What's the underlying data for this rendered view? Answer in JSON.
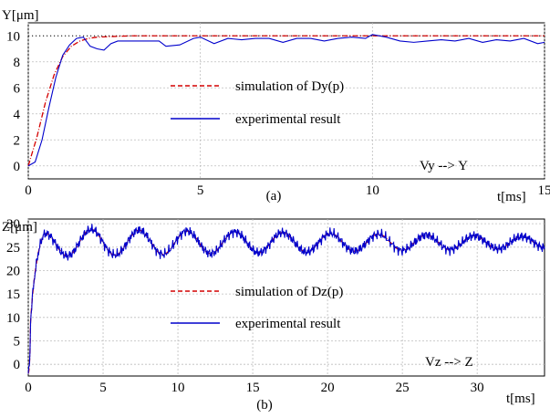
{
  "chart_data": [
    {
      "type": "line",
      "ylabel": "Y[μm]",
      "xlabel": "t[ms]",
      "caption": "(a)",
      "annotation": "Vy --> Y",
      "xlim": [
        0,
        15
      ],
      "ylim": [
        -1,
        11
      ],
      "xticks": [
        "0",
        "5",
        "10",
        "15"
      ],
      "yticks": [
        "0",
        "2",
        "4",
        "6",
        "8",
        "10"
      ],
      "reference_line": 10,
      "grid": true,
      "series": [
        {
          "name": "simulation of Dy(p)",
          "style": "dashdot",
          "color": "#d40000",
          "x": [
            0,
            0.25,
            0.5,
            0.75,
            1.0,
            1.25,
            1.5,
            1.75,
            2.0,
            2.5,
            3,
            4,
            5,
            6,
            7,
            8,
            9,
            10,
            11,
            12,
            13,
            14,
            15
          ],
          "y": [
            0,
            2.2,
            4.9,
            7.0,
            8.4,
            9.2,
            9.6,
            9.8,
            9.9,
            9.95,
            10,
            10,
            10,
            10,
            10,
            10,
            10,
            10,
            10,
            10,
            10,
            10,
            10
          ]
        },
        {
          "name": "experimental result",
          "style": "solid",
          "color": "#0000cc",
          "x": [
            0,
            0.2,
            0.4,
            0.6,
            0.8,
            1.0,
            1.2,
            1.4,
            1.6,
            1.8,
            2.0,
            2.2,
            2.4,
            2.6,
            2.8,
            3.0,
            3.4,
            3.8,
            4.0,
            4.4,
            4.8,
            5.0,
            5.4,
            5.8,
            6.2,
            6.6,
            7.0,
            7.4,
            7.8,
            8.2,
            8.6,
            9.0,
            9.4,
            9.8,
            10.0,
            10.4,
            10.8,
            11.2,
            11.6,
            12.0,
            12.4,
            12.8,
            13.2,
            13.6,
            14.0,
            14.4,
            14.8,
            15.0
          ],
          "y": [
            0,
            0.3,
            2.0,
            4.5,
            6.8,
            8.5,
            9.3,
            9.8,
            9.9,
            9.2,
            9.0,
            8.9,
            9.4,
            9.6,
            9.6,
            9.6,
            9.6,
            9.6,
            9.2,
            9.3,
            9.8,
            9.9,
            9.4,
            9.8,
            9.7,
            9.8,
            9.8,
            9.5,
            9.8,
            9.8,
            9.6,
            9.8,
            9.9,
            9.8,
            10.1,
            9.9,
            9.6,
            9.5,
            9.6,
            9.7,
            9.6,
            9.8,
            9.5,
            9.7,
            9.6,
            9.8,
            9.4,
            9.5
          ]
        }
      ]
    },
    {
      "type": "line",
      "ylabel": "Z[μm]",
      "xlabel": "t[ms]",
      "caption": "(b)",
      "annotation": "Vz --> Z",
      "xlim": [
        0,
        34.5
      ],
      "ylim": [
        -2.5,
        31
      ],
      "xticks": [
        "0",
        "5",
        "10",
        "15",
        "20",
        "25",
        "30"
      ],
      "yticks": [
        "0",
        "5",
        "10",
        "15",
        "20",
        "25",
        "30"
      ],
      "grid": true,
      "model": {
        "final_value": 26,
        "rise_time_ms": 0.35,
        "oscillation_amplitude_start": 3.0,
        "oscillation_amplitude_end": 1.2,
        "oscillation_period_ms": 3.2
      },
      "series": [
        {
          "name": "simulation of Dz(p)",
          "style": "dashdot",
          "color": "#d40000"
        },
        {
          "name": "experimental result",
          "style": "solid",
          "color": "#0000cc"
        }
      ]
    }
  ]
}
